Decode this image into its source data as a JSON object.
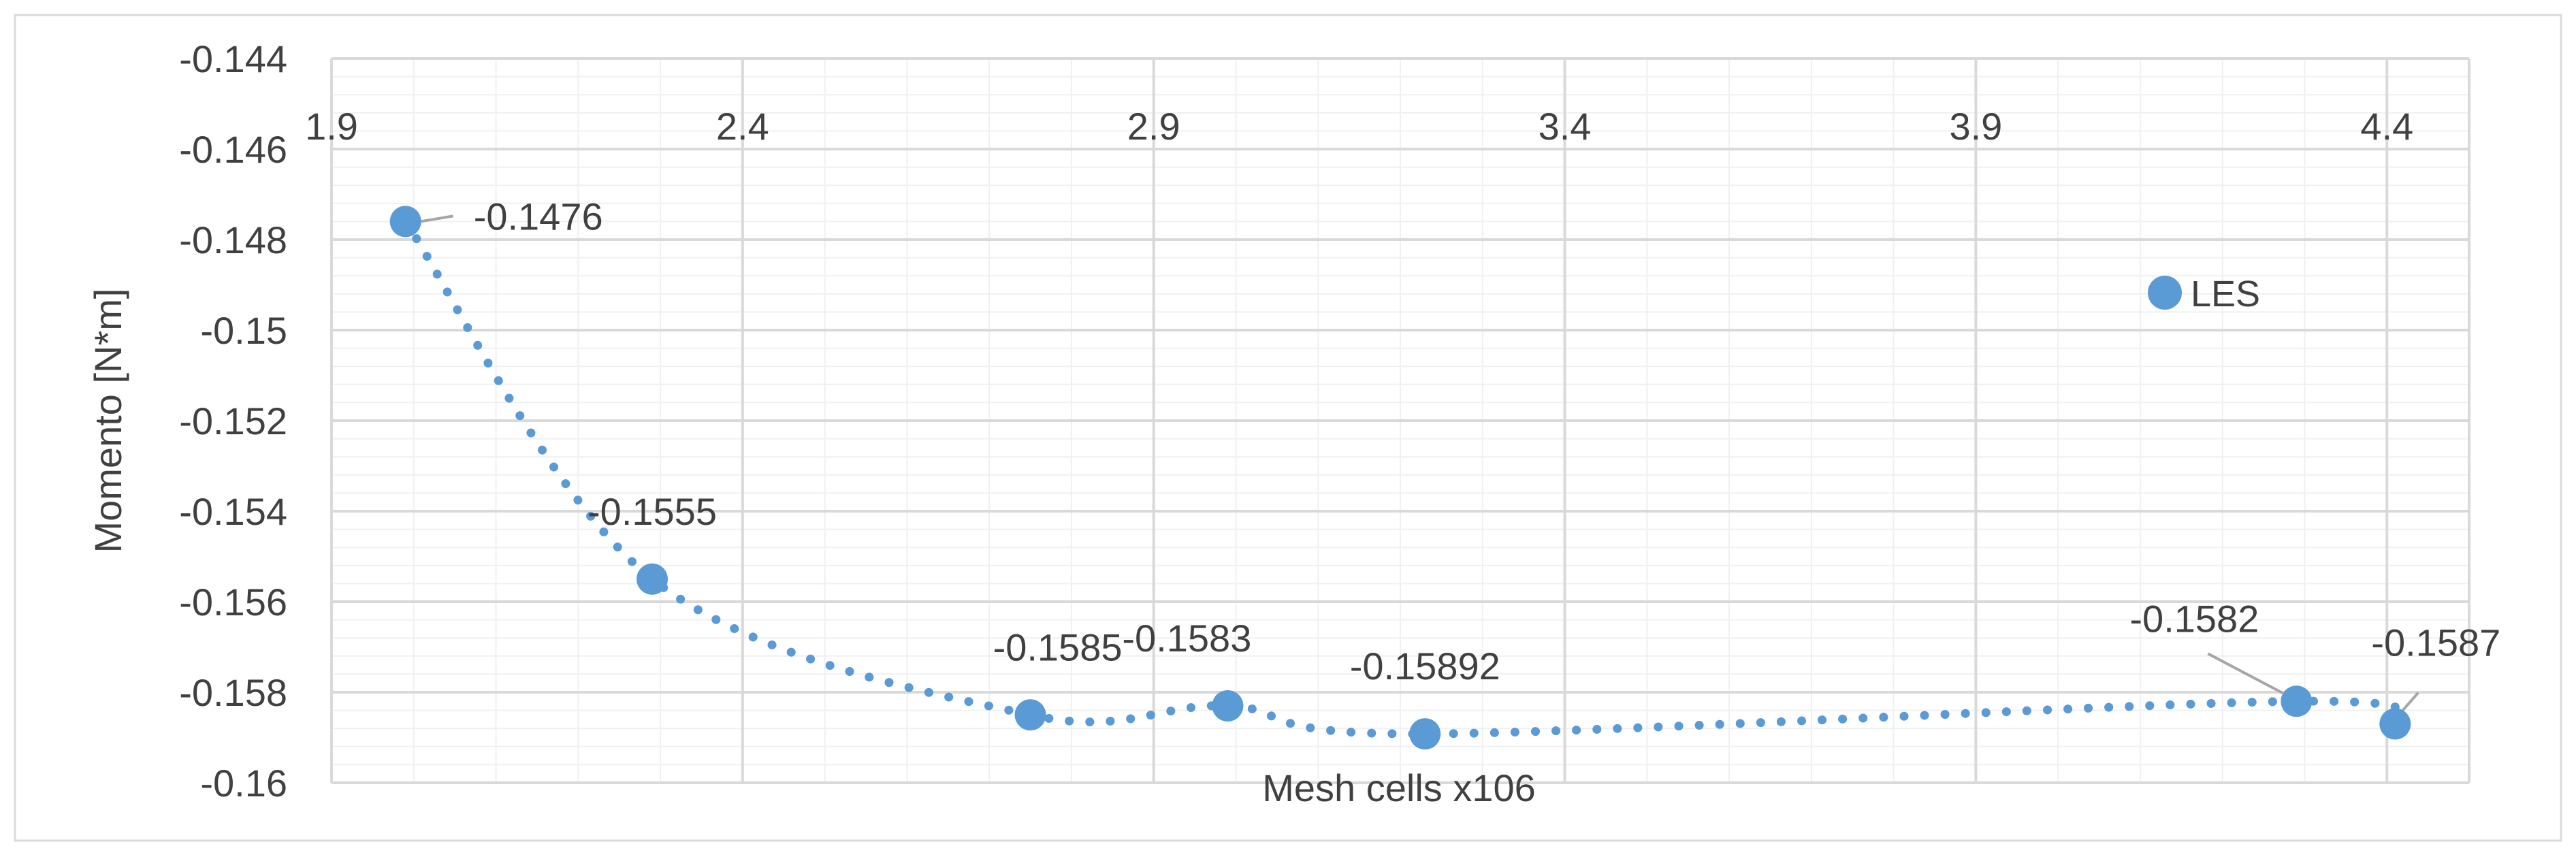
{
  "chart_data": {
    "type": "scatter",
    "title": "",
    "xlabel": "Mesh cells x106",
    "ylabel": "Momento [N*m]",
    "xlim": [
      1.9,
      4.5
    ],
    "ylim": [
      -0.16,
      -0.144
    ],
    "x_ticks": [
      1.9,
      2.4,
      2.9,
      3.4,
      3.9,
      4.4
    ],
    "x_tick_labels": [
      "1.9",
      "2.4",
      "2.9",
      "3.4",
      "3.9",
      "4.4"
    ],
    "y_ticks": [
      -0.144,
      -0.146,
      -0.148,
      -0.15,
      -0.152,
      -0.154,
      -0.156,
      -0.158,
      -0.16
    ],
    "y_tick_labels": [
      "-0.144",
      "-0.146",
      "-0.148",
      "-0.15",
      "-0.152",
      "-0.154",
      "-0.156",
      "-0.158",
      "-0.16"
    ],
    "x_axis_position": "top",
    "grid": true,
    "minor_grid": true,
    "legend_position": "right",
    "series": [
      {
        "name": "LES",
        "color": "#5b9bd5",
        "trendline": "dotted",
        "x": [
          1.99,
          2.29,
          2.75,
          2.99,
          3.23,
          4.29,
          4.41
        ],
        "y": [
          -0.1476,
          -0.1555,
          -0.1585,
          -0.1583,
          -0.15892,
          -0.1582,
          -0.1587
        ],
        "data_labels": [
          "-0.1476",
          "-0.1555",
          "-0.1585",
          "-0.1583",
          "-0.15892",
          "-0.1582",
          "-0.1587"
        ]
      }
    ]
  }
}
